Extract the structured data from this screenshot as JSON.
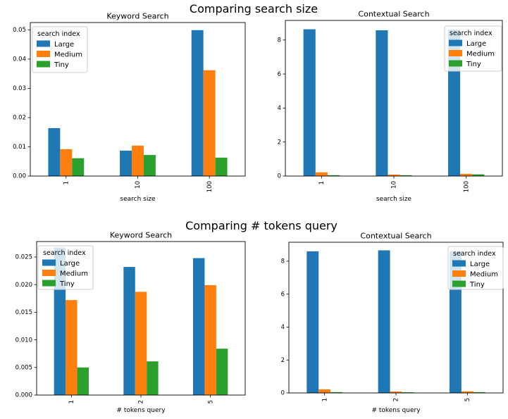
{
  "figure": {
    "background": "#ffffff",
    "axis_color": "#000000",
    "sections": [
      {
        "suptitle": "Comparing search size"
      },
      {
        "suptitle": "Comparing # tokens query"
      }
    ]
  },
  "legend": {
    "title": "search index",
    "entries": [
      {
        "label": "Large",
        "color": "#1f77b4"
      },
      {
        "label": "Medium",
        "color": "#ff7f0e"
      },
      {
        "label": "Tiny",
        "color": "#2ca02c"
      }
    ]
  },
  "chart_data": [
    {
      "type": "bar",
      "title": "Keyword Search",
      "xlabel": "search size",
      "ylabel": "",
      "categories": [
        "1",
        "10",
        "100"
      ],
      "series": [
        {
          "name": "Large",
          "color": "#1f77b4",
          "values": [
            0.0164,
            0.0087,
            0.0499
          ]
        },
        {
          "name": "Medium",
          "color": "#ff7f0e",
          "values": [
            0.0092,
            0.0104,
            0.0362
          ]
        },
        {
          "name": "Tiny",
          "color": "#2ca02c",
          "values": [
            0.0061,
            0.0072,
            0.0063
          ]
        }
      ],
      "yticks": [
        0,
        0.01,
        0.02,
        0.03,
        0.04,
        0.05
      ],
      "ytick_labels": [
        "0.00",
        "0.01",
        "0.02",
        "0.03",
        "0.04",
        "0.05"
      ],
      "ylim": [
        0,
        0.0525
      ],
      "grid": false,
      "legend_title": "search index",
      "legend_position": "upper left"
    },
    {
      "type": "bar",
      "title": "Contextual Search",
      "xlabel": "search size",
      "ylabel": "",
      "categories": [
        "1",
        "10",
        "100"
      ],
      "series": [
        {
          "name": "Large",
          "color": "#1f77b4",
          "values": [
            8.63,
            8.57,
            8.61
          ]
        },
        {
          "name": "Medium",
          "color": "#ff7f0e",
          "values": [
            0.22,
            0.09,
            0.13
          ]
        },
        {
          "name": "Tiny",
          "color": "#2ca02c",
          "values": [
            0.05,
            0.05,
            0.1
          ]
        }
      ],
      "yticks": [
        0,
        2,
        4,
        6,
        8
      ],
      "ytick_labels": [
        "0",
        "2",
        "4",
        "6",
        "8"
      ],
      "ylim": [
        0,
        9.15
      ],
      "grid": false,
      "legend_title": "search index",
      "legend_position": "upper right"
    },
    {
      "type": "bar",
      "title": "Keyword Search",
      "xlabel": "# tokens query",
      "ylabel": "",
      "categories": [
        "1",
        "2",
        "5"
      ],
      "series": [
        {
          "name": "Large",
          "color": "#1f77b4",
          "values": [
            0.0267,
            0.0232,
            0.0248
          ]
        },
        {
          "name": "Medium",
          "color": "#ff7f0e",
          "values": [
            0.0172,
            0.0187,
            0.0199
          ]
        },
        {
          "name": "Tiny",
          "color": "#2ca02c",
          "values": [
            0.005,
            0.0061,
            0.0084
          ]
        }
      ],
      "yticks": [
        0,
        0.005,
        0.01,
        0.015,
        0.02,
        0.025
      ],
      "ytick_labels": [
        "0.000",
        "0.005",
        "0.010",
        "0.015",
        "0.020",
        "0.025"
      ],
      "ylim": [
        0,
        0.0278
      ],
      "grid": false,
      "legend_title": "search index",
      "legend_position": "upper left"
    },
    {
      "type": "bar",
      "title": "Contextual Search",
      "xlabel": "# tokens query",
      "ylabel": "",
      "categories": [
        "1",
        "2",
        "5"
      ],
      "series": [
        {
          "name": "Large",
          "color": "#1f77b4",
          "values": [
            8.6,
            8.66,
            8.61
          ]
        },
        {
          "name": "Medium",
          "color": "#ff7f0e",
          "values": [
            0.22,
            0.09,
            0.1
          ]
        },
        {
          "name": "Tiny",
          "color": "#2ca02c",
          "values": [
            0.05,
            0.04,
            0.05
          ]
        }
      ],
      "yticks": [
        0,
        2,
        4,
        6,
        8
      ],
      "ytick_labels": [
        "0",
        "2",
        "4",
        "6",
        "8"
      ],
      "ylim": [
        0,
        9.15
      ],
      "grid": false,
      "legend_title": "search index",
      "legend_position": "upper right"
    }
  ]
}
